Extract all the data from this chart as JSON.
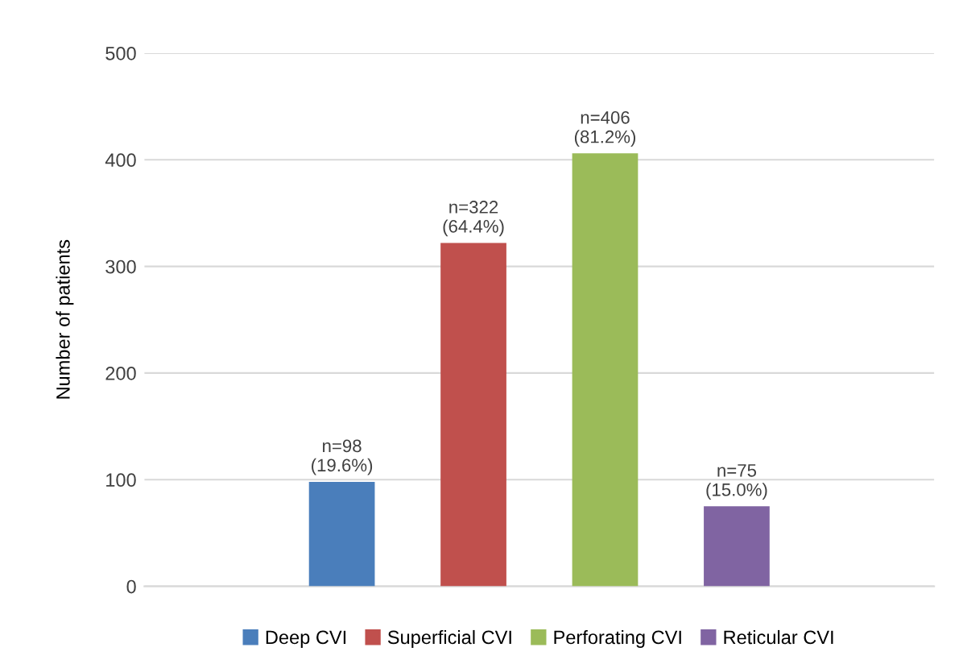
{
  "chart_data": {
    "type": "bar",
    "ylabel": "Number of patients",
    "categories": [
      null,
      null,
      null,
      null,
      null,
      null
    ],
    "stacked": true,
    "series": [
      {
        "name": "Deep CVI",
        "color": "#4a7ebb",
        "values": [
          null,
          98,
          null,
          null,
          null,
          null
        ],
        "value_labels": [
          null,
          "n=98\n(19.6%)",
          null,
          null,
          null,
          null
        ]
      },
      {
        "name": "Superficial CVI",
        "color": "#c0504d",
        "values": [
          null,
          null,
          322,
          null,
          null,
          null
        ],
        "value_labels": [
          null,
          null,
          "n=322\n(64.4%)",
          null,
          null,
          null
        ]
      },
      {
        "name": "Perforating CVI",
        "color": "#9bbb59",
        "values": [
          null,
          null,
          null,
          406,
          null,
          null
        ],
        "value_labels": [
          null,
          null,
          null,
          "n=406\n(81.2%)",
          null,
          null
        ]
      },
      {
        "name": "Reticular CVI",
        "color": "#8064a2",
        "values": [
          null,
          null,
          null,
          null,
          75,
          null
        ],
        "value_labels": [
          null,
          null,
          null,
          null,
          "n=75\n(15.0%)",
          null
        ]
      }
    ],
    "ylim": [
      0,
      500
    ],
    "yticks": [
      0,
      100,
      200,
      300,
      400,
      500
    ],
    "grid": "y",
    "legend": "bottom"
  }
}
